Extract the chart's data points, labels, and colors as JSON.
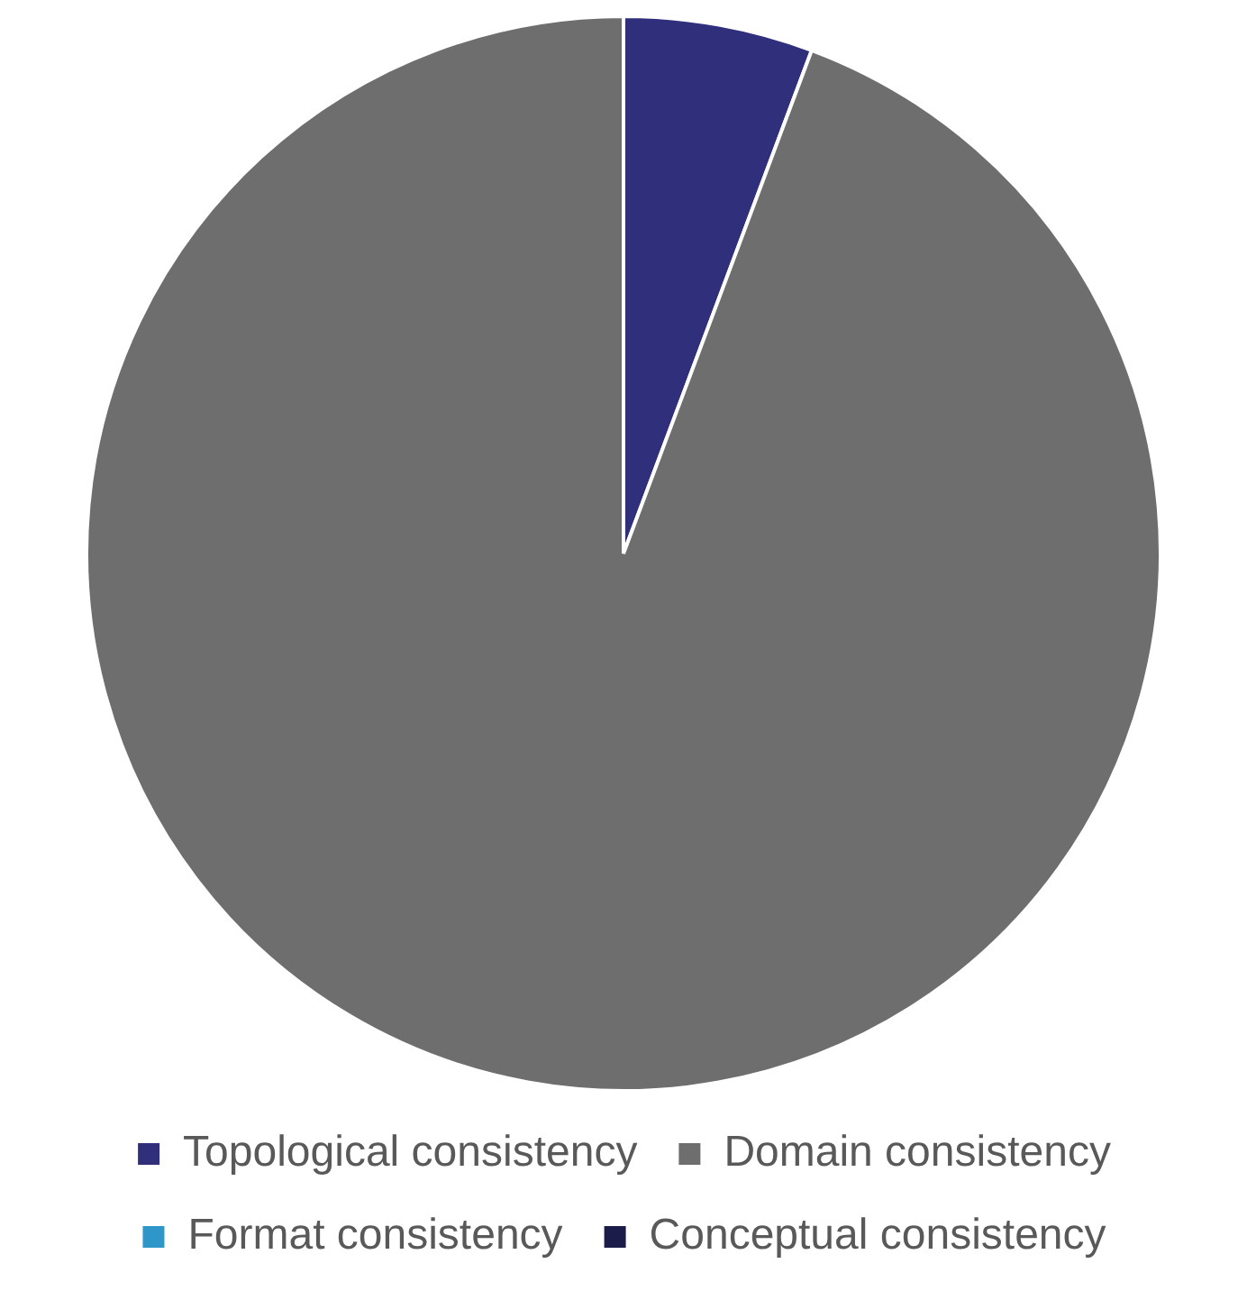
{
  "chart_data": {
    "type": "pie",
    "categories": [
      "Topological consistency",
      "Domain consistency",
      "Format consistency",
      "Conceptual consistency"
    ],
    "values": [
      5.7,
      94.3,
      0,
      0
    ],
    "colors": [
      "#2f2f7c",
      "#6e6e6e",
      "#2e96c8",
      "#1c1c4a"
    ],
    "legend": "bottom"
  }
}
